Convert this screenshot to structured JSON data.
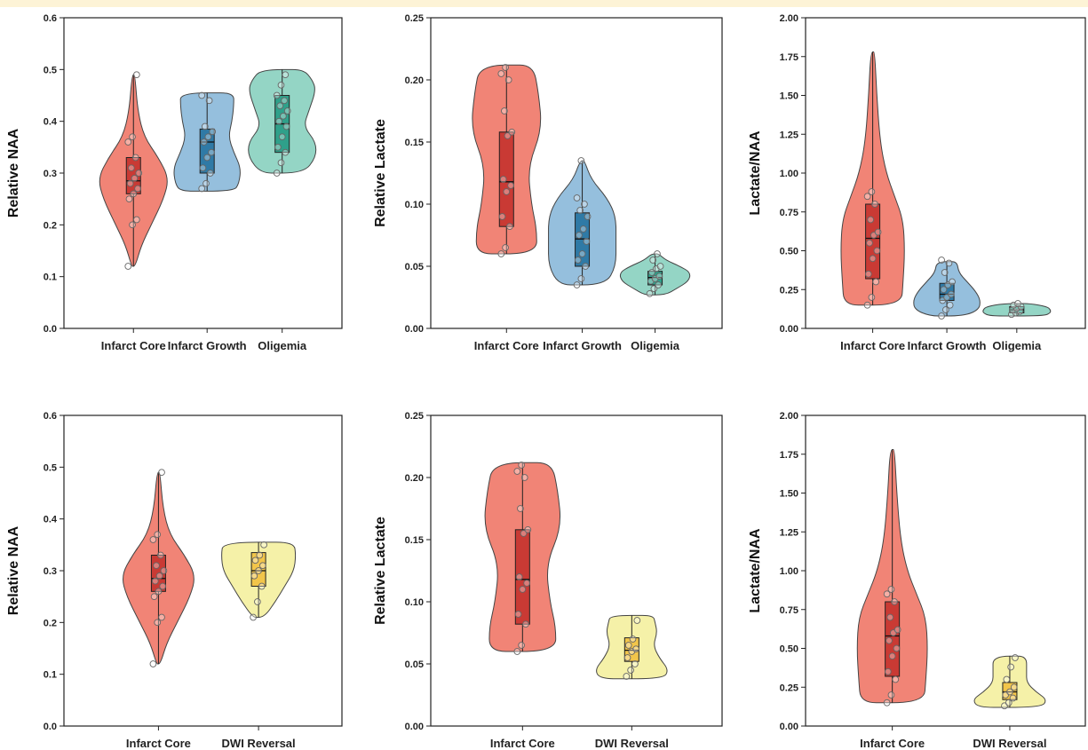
{
  "palette": {
    "infarct_core": {
      "violin": "#f07d6f",
      "box": "#c93a34"
    },
    "infarct_growth": {
      "violin": "#8fbcdb",
      "box": "#2f7aa6"
    },
    "oligemia": {
      "violin": "#8ed3c2",
      "box": "#2fa08a"
    },
    "dwi_reversal": {
      "violin": "#f4f0a3",
      "box": "#f2c54a"
    }
  },
  "chart_data": [
    {
      "type": "violin",
      "ylabel": "Relative NAA",
      "ylim": [
        0,
        0.6
      ],
      "yticks": [
        "0.0",
        "0.1",
        "0.2",
        "0.3",
        "0.4",
        "0.5",
        "0.6"
      ],
      "groups": [
        {
          "name": "Infarct Core",
          "color_key": "infarct_core",
          "min": 0.12,
          "max": 0.49,
          "q1": 0.26,
          "median": 0.285,
          "q3": 0.33,
          "density": [
            [
              0.12,
              0.05
            ],
            [
              0.16,
              0.22
            ],
            [
              0.2,
              0.5
            ],
            [
              0.25,
              0.85
            ],
            [
              0.29,
              1.0
            ],
            [
              0.33,
              0.7
            ],
            [
              0.37,
              0.3
            ],
            [
              0.42,
              0.12
            ],
            [
              0.49,
              0.04
            ]
          ],
          "points": [
            0.12,
            0.2,
            0.21,
            0.25,
            0.26,
            0.27,
            0.28,
            0.29,
            0.3,
            0.31,
            0.33,
            0.36,
            0.37,
            0.49
          ]
        },
        {
          "name": "Infarct Growth",
          "color_key": "infarct_growth",
          "min": 0.265,
          "max": 0.455,
          "q1": 0.3,
          "median": 0.36,
          "q3": 0.385,
          "density": [
            [
              0.265,
              0.75
            ],
            [
              0.28,
              0.9
            ],
            [
              0.31,
              0.95
            ],
            [
              0.34,
              0.75
            ],
            [
              0.37,
              0.6
            ],
            [
              0.4,
              0.7
            ],
            [
              0.43,
              0.75
            ],
            [
              0.455,
              0.75
            ]
          ],
          "points": [
            0.27,
            0.28,
            0.3,
            0.31,
            0.33,
            0.34,
            0.36,
            0.37,
            0.38,
            0.39,
            0.44,
            0.45
          ]
        },
        {
          "name": "Oligemia",
          "color_key": "oligemia",
          "min": 0.3,
          "max": 0.5,
          "q1": 0.34,
          "median": 0.395,
          "q3": 0.45,
          "density": [
            [
              0.3,
              0.6
            ],
            [
              0.33,
              0.95
            ],
            [
              0.36,
              0.95
            ],
            [
              0.39,
              0.6
            ],
            [
              0.42,
              0.75
            ],
            [
              0.46,
              0.95
            ],
            [
              0.48,
              0.85
            ],
            [
              0.5,
              0.6
            ]
          ],
          "points": [
            0.3,
            0.32,
            0.34,
            0.35,
            0.37,
            0.39,
            0.4,
            0.41,
            0.42,
            0.43,
            0.44,
            0.45,
            0.47,
            0.49
          ]
        }
      ]
    },
    {
      "type": "violin",
      "ylabel": "Relative Lactate",
      "ylim": [
        0,
        0.25
      ],
      "yticks": [
        "0.00",
        "0.05",
        "0.10",
        "0.15",
        "0.20",
        "0.25"
      ],
      "groups": [
        {
          "name": "Infarct Core",
          "color_key": "infarct_core",
          "min": 0.06,
          "max": 0.212,
          "q1": 0.082,
          "median": 0.118,
          "q3": 0.158,
          "density": [
            [
              0.06,
              0.85
            ],
            [
              0.08,
              0.85
            ],
            [
              0.1,
              0.7
            ],
            [
              0.13,
              0.6
            ],
            [
              0.16,
              1.0
            ],
            [
              0.19,
              0.9
            ],
            [
              0.212,
              0.75
            ]
          ],
          "points": [
            0.06,
            0.065,
            0.082,
            0.09,
            0.11,
            0.115,
            0.12,
            0.155,
            0.158,
            0.175,
            0.2,
            0.205,
            0.21
          ]
        },
        {
          "name": "Infarct Growth",
          "color_key": "infarct_growth",
          "min": 0.035,
          "max": 0.135,
          "q1": 0.05,
          "median": 0.072,
          "q3": 0.093,
          "density": [
            [
              0.035,
              0.65
            ],
            [
              0.05,
              0.95
            ],
            [
              0.07,
              0.95
            ],
            [
              0.09,
              0.95
            ],
            [
              0.105,
              0.7
            ],
            [
              0.12,
              0.25
            ],
            [
              0.135,
              0.06
            ]
          ],
          "points": [
            0.035,
            0.04,
            0.05,
            0.055,
            0.06,
            0.07,
            0.075,
            0.08,
            0.09,
            0.095,
            0.1,
            0.105,
            0.135
          ]
        },
        {
          "name": "Oligemia",
          "color_key": "oligemia",
          "min": 0.027,
          "max": 0.06,
          "q1": 0.035,
          "median": 0.041,
          "q3": 0.046,
          "density": [
            [
              0.027,
              0.3
            ],
            [
              0.032,
              0.6
            ],
            [
              0.038,
              0.95
            ],
            [
              0.045,
              1.0
            ],
            [
              0.05,
              0.7
            ],
            [
              0.055,
              0.3
            ],
            [
              0.06,
              0.1
            ]
          ],
          "points": [
            0.028,
            0.032,
            0.035,
            0.038,
            0.04,
            0.042,
            0.045,
            0.048,
            0.05,
            0.055,
            0.06
          ]
        }
      ]
    },
    {
      "type": "violin",
      "ylabel": "Lactate/NAA",
      "ylim": [
        0,
        2.0
      ],
      "yticks": [
        "0.00",
        "0.25",
        "0.50",
        "0.75",
        "1.00",
        "1.25",
        "1.50",
        "1.75",
        "2.00"
      ],
      "groups": [
        {
          "name": "Infarct Core",
          "color_key": "infarct_core",
          "min": 0.15,
          "max": 1.78,
          "q1": 0.32,
          "median": 0.58,
          "q3": 0.8,
          "density": [
            [
              0.15,
              0.85
            ],
            [
              0.3,
              0.9
            ],
            [
              0.5,
              0.95
            ],
            [
              0.7,
              0.9
            ],
            [
              0.85,
              0.65
            ],
            [
              1.0,
              0.4
            ],
            [
              1.2,
              0.22
            ],
            [
              1.5,
              0.12
            ],
            [
              1.78,
              0.06
            ]
          ],
          "points": [
            0.15,
            0.2,
            0.3,
            0.35,
            0.45,
            0.5,
            0.55,
            0.6,
            0.62,
            0.7,
            0.8,
            0.85,
            0.88
          ]
        },
        {
          "name": "Infarct Growth",
          "color_key": "infarct_growth",
          "min": 0.08,
          "max": 0.43,
          "q1": 0.18,
          "median": 0.22,
          "q3": 0.29,
          "density": [
            [
              0.08,
              0.5
            ],
            [
              0.12,
              0.95
            ],
            [
              0.18,
              1.0
            ],
            [
              0.24,
              0.85
            ],
            [
              0.3,
              0.6
            ],
            [
              0.36,
              0.35
            ],
            [
              0.43,
              0.3
            ]
          ],
          "points": [
            0.08,
            0.12,
            0.15,
            0.18,
            0.2,
            0.22,
            0.25,
            0.28,
            0.3,
            0.36,
            0.42,
            0.44
          ]
        },
        {
          "name": "Oligemia",
          "color_key": "oligemia",
          "min": 0.08,
          "max": 0.16,
          "q1": 0.1,
          "median": 0.12,
          "q3": 0.14,
          "density": [
            [
              0.08,
              0.8
            ],
            [
              0.1,
              1.0
            ],
            [
              0.12,
              1.0
            ],
            [
              0.14,
              0.9
            ],
            [
              0.16,
              0.4
            ]
          ],
          "points": [
            0.09,
            0.1,
            0.11,
            0.12,
            0.13,
            0.14,
            0.15,
            0.16
          ]
        }
      ]
    },
    {
      "type": "violin",
      "ylabel": "Relative NAA",
      "ylim": [
        0,
        0.6
      ],
      "yticks": [
        "0.0",
        "0.1",
        "0.2",
        "0.3",
        "0.4",
        "0.5",
        "0.6"
      ],
      "groups": [
        {
          "name": "Infarct Core",
          "color_key": "infarct_core",
          "min": 0.12,
          "max": 0.49,
          "q1": 0.26,
          "median": 0.285,
          "q3": 0.33,
          "density": [
            [
              0.12,
              0.05
            ],
            [
              0.16,
              0.22
            ],
            [
              0.2,
              0.5
            ],
            [
              0.25,
              0.85
            ],
            [
              0.29,
              1.0
            ],
            [
              0.33,
              0.7
            ],
            [
              0.37,
              0.3
            ],
            [
              0.42,
              0.12
            ],
            [
              0.49,
              0.04
            ]
          ],
          "points": [
            0.12,
            0.2,
            0.21,
            0.25,
            0.26,
            0.27,
            0.28,
            0.29,
            0.3,
            0.31,
            0.33,
            0.36,
            0.37,
            0.49
          ]
        },
        {
          "name": "DWI Reversal",
          "color_key": "dwi_reversal",
          "min": 0.21,
          "max": 0.355,
          "q1": 0.27,
          "median": 0.3,
          "q3": 0.335,
          "density": [
            [
              0.21,
              0.15
            ],
            [
              0.24,
              0.45
            ],
            [
              0.27,
              0.7
            ],
            [
              0.3,
              0.95
            ],
            [
              0.33,
              1.0
            ],
            [
              0.355,
              0.95
            ]
          ],
          "points": [
            0.21,
            0.24,
            0.27,
            0.29,
            0.3,
            0.31,
            0.32,
            0.33,
            0.35
          ]
        }
      ]
    },
    {
      "type": "violin",
      "ylabel": "Relative Lactate",
      "ylim": [
        0,
        0.25
      ],
      "yticks": [
        "0.00",
        "0.05",
        "0.10",
        "0.15",
        "0.20",
        "0.25"
      ],
      "groups": [
        {
          "name": "Infarct Core",
          "color_key": "infarct_core",
          "min": 0.06,
          "max": 0.212,
          "q1": 0.082,
          "median": 0.118,
          "q3": 0.158,
          "density": [
            [
              0.06,
              0.85
            ],
            [
              0.08,
              0.85
            ],
            [
              0.1,
              0.7
            ],
            [
              0.13,
              0.6
            ],
            [
              0.16,
              1.0
            ],
            [
              0.19,
              0.9
            ],
            [
              0.212,
              0.75
            ]
          ],
          "points": [
            0.06,
            0.065,
            0.082,
            0.09,
            0.11,
            0.115,
            0.12,
            0.155,
            0.158,
            0.175,
            0.2,
            0.205,
            0.21
          ]
        },
        {
          "name": "DWI Reversal",
          "color_key": "dwi_reversal",
          "min": 0.038,
          "max": 0.089,
          "q1": 0.052,
          "median": 0.061,
          "q3": 0.071,
          "density": [
            [
              0.038,
              0.8
            ],
            [
              0.045,
              0.95
            ],
            [
              0.055,
              0.7
            ],
            [
              0.065,
              0.55
            ],
            [
              0.075,
              0.65
            ],
            [
              0.083,
              0.6
            ],
            [
              0.089,
              0.55
            ]
          ],
          "points": [
            0.04,
            0.045,
            0.05,
            0.055,
            0.06,
            0.062,
            0.065,
            0.07,
            0.085
          ]
        }
      ]
    },
    {
      "type": "violin",
      "ylabel": "Lactate/NAA",
      "ylim": [
        0,
        2.0
      ],
      "yticks": [
        "0.00",
        "0.25",
        "0.50",
        "0.75",
        "1.00",
        "1.25",
        "1.50",
        "1.75",
        "2.00"
      ],
      "groups": [
        {
          "name": "Infarct Core",
          "color_key": "infarct_core",
          "min": 0.15,
          "max": 1.78,
          "q1": 0.32,
          "median": 0.58,
          "q3": 0.8,
          "density": [
            [
              0.15,
              0.85
            ],
            [
              0.3,
              0.9
            ],
            [
              0.5,
              0.95
            ],
            [
              0.7,
              0.9
            ],
            [
              0.85,
              0.65
            ],
            [
              1.0,
              0.4
            ],
            [
              1.2,
              0.22
            ],
            [
              1.5,
              0.12
            ],
            [
              1.78,
              0.06
            ]
          ],
          "points": [
            0.15,
            0.2,
            0.3,
            0.35,
            0.45,
            0.5,
            0.55,
            0.6,
            0.62,
            0.7,
            0.8,
            0.85,
            0.88
          ]
        },
        {
          "name": "DWI Reversal",
          "color_key": "dwi_reversal",
          "min": 0.12,
          "max": 0.45,
          "q1": 0.17,
          "median": 0.22,
          "q3": 0.28,
          "density": [
            [
              0.12,
              0.85
            ],
            [
              0.17,
              1.0
            ],
            [
              0.22,
              0.7
            ],
            [
              0.28,
              0.45
            ],
            [
              0.35,
              0.45
            ],
            [
              0.45,
              0.45
            ]
          ],
          "points": [
            0.13,
            0.15,
            0.18,
            0.2,
            0.22,
            0.25,
            0.3,
            0.38,
            0.44
          ]
        }
      ]
    }
  ]
}
